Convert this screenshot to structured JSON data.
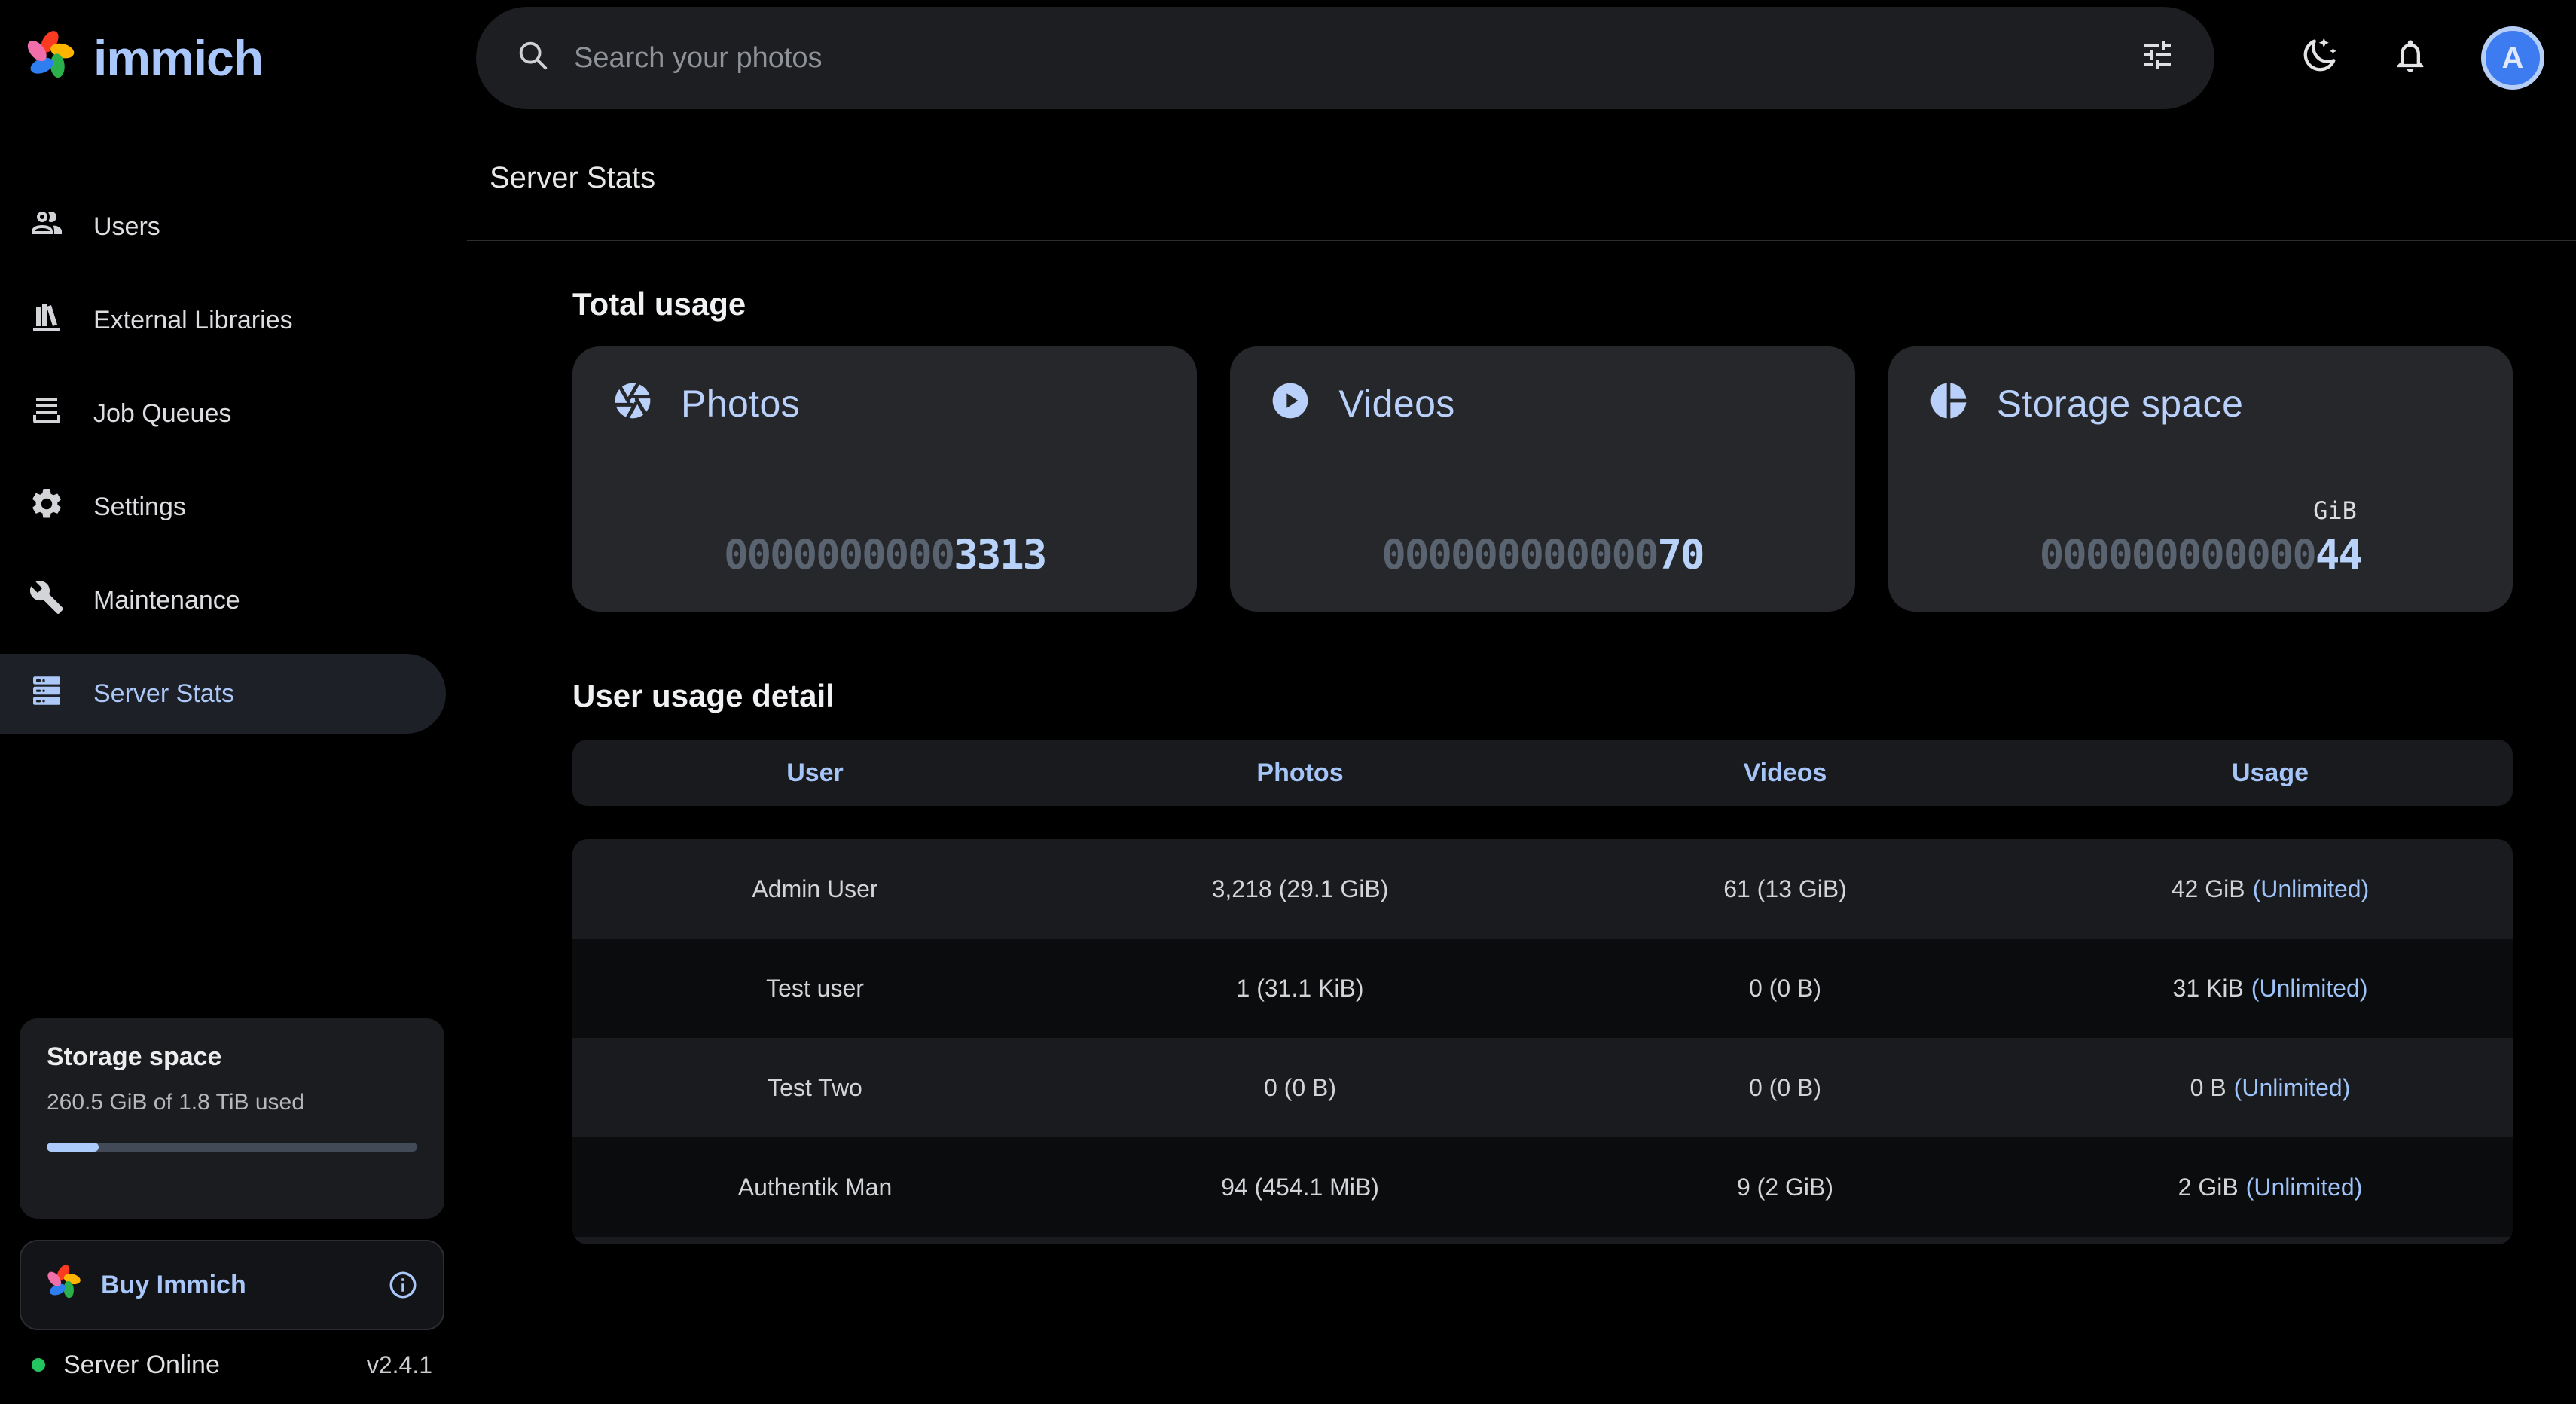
{
  "app": {
    "name": "immich"
  },
  "topbar": {
    "search_placeholder": "Search your photos",
    "avatar_letter": "A"
  },
  "sidebar": {
    "items": [
      {
        "label": "Users",
        "icon": "users-icon"
      },
      {
        "label": "External Libraries",
        "icon": "bookshelf-icon"
      },
      {
        "label": "Job Queues",
        "icon": "tray-icon"
      },
      {
        "label": "Settings",
        "icon": "gear-icon"
      },
      {
        "label": "Maintenance",
        "icon": "wrench-icon"
      },
      {
        "label": "Server Stats",
        "icon": "server-rack-icon"
      }
    ],
    "active_index": 5,
    "storage_panel": {
      "title": "Storage space",
      "usage_text": "260.5 GiB of 1.8 TiB used",
      "progress_percent": 14
    },
    "buy": {
      "label": "Buy Immich"
    },
    "status": {
      "label": "Server Online",
      "version": "v2.4.1"
    }
  },
  "page": {
    "title": "Server Stats"
  },
  "total_usage": {
    "heading": "Total usage",
    "cards": [
      {
        "label": "Photos",
        "icon": "camera-iris-icon",
        "padding": "0000000000",
        "value": "3313",
        "unit": ""
      },
      {
        "label": "Videos",
        "icon": "play-circle-icon",
        "padding": "000000000000",
        "value": "70",
        "unit": ""
      },
      {
        "label": "Storage space",
        "icon": "pie-chart-icon",
        "padding": "000000000000",
        "value": "44",
        "unit": "GiB"
      }
    ]
  },
  "user_usage": {
    "heading": "User usage detail",
    "columns": [
      "User",
      "Photos",
      "Videos",
      "Usage"
    ],
    "rows": [
      {
        "user": "Admin User",
        "photos": "3,218 (29.1 GiB)",
        "videos": "61 (13 GiB)",
        "usage": "42 GiB",
        "usage_note": "(Unlimited)"
      },
      {
        "user": "Test user",
        "photos": "1 (31.1 KiB)",
        "videos": "0 (0 B)",
        "usage": "31 KiB",
        "usage_note": "(Unlimited)"
      },
      {
        "user": "Test Two",
        "photos": "0 (0 B)",
        "videos": "0 (0 B)",
        "usage": "0 B",
        "usage_note": "(Unlimited)"
      },
      {
        "user": "Authentik Man",
        "photos": "94 (454.1 MiB)",
        "videos": "9 (2 GiB)",
        "usage": "2 GiB",
        "usage_note": "(Unlimited)"
      }
    ]
  },
  "colors": {
    "primary_blue": "#adcbfa",
    "page_bg": "#000000",
    "card_bg": "#26272b",
    "dim_digit": "#5a6370",
    "online_green": "#23c560",
    "logo_petals": {
      "red": "#fb3a22",
      "yellow": "#ffb400",
      "green": "#2bb14c",
      "blue": "#2e7ef0",
      "pink": "#f06ea9"
    }
  }
}
